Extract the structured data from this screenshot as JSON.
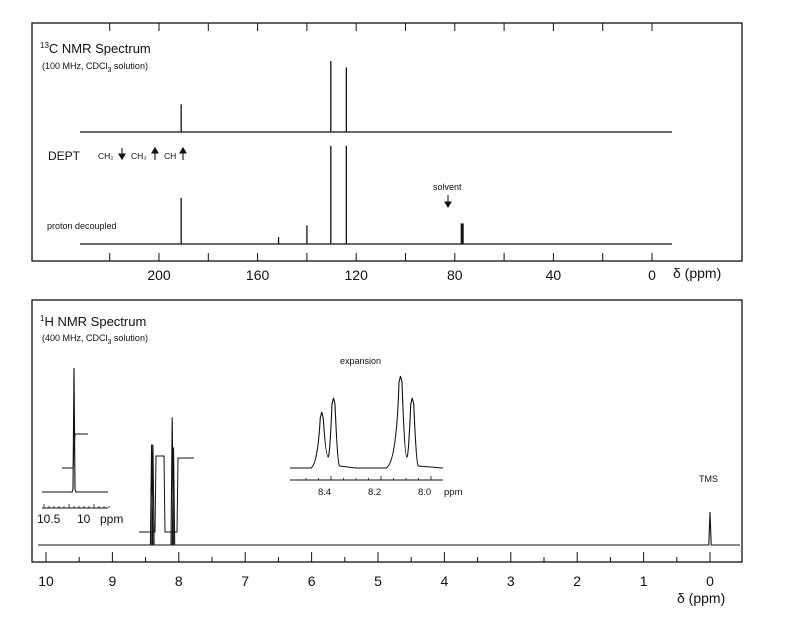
{
  "colors": {
    "ink": "#111111",
    "background": "#ffffff"
  },
  "carbon_panel": {
    "title_sup": "13",
    "title": "C NMR Spectrum",
    "subtitle_pre": "(100 MHz, CDCl",
    "subtitle_sub": "3",
    "subtitle_post": " solution)",
    "dept_label": "DEPT",
    "dept_ch2": "CH₂",
    "dept_ch3": "CH₃",
    "dept_ch": "CH",
    "proton_decoupled_label": "proton decoupled",
    "solvent_label": "solvent",
    "axis_label": "δ (ppm)"
  },
  "proton_panel": {
    "title_sup": "1",
    "title": "H NMR Spectrum",
    "subtitle_pre": "(400 MHz, CDCl",
    "subtitle_sub": "3",
    "subtitle_post": " solution)",
    "expansion_label": "expansion",
    "tms_label": "TMS",
    "inset_left_ticks": [
      "10.5",
      "10"
    ],
    "inset_left_unit": "ppm",
    "inset_right_ticks": [
      "8.4",
      "8.2",
      "8.0"
    ],
    "inset_right_unit": "ppm",
    "axis_label": "δ (ppm)"
  },
  "chart_data": [
    {
      "type": "line",
      "title": "13C NMR Spectrum (100 MHz, CDCl3 solution)",
      "xlabel": "δ (ppm)",
      "xlim": [
        220,
        -10
      ],
      "x_ticks": [
        "200",
        "160",
        "120",
        "80",
        "40",
        "0"
      ],
      "series": [
        {
          "name": "DEPT",
          "peaks_ppm": [
            191.0,
            130.3,
            124.0
          ],
          "relative_heights": [
            0.39,
            1.0,
            0.91
          ]
        },
        {
          "name": "proton decoupled",
          "peaks_ppm": [
            191.0,
            151.5,
            140.0,
            130.3,
            124.0,
            77.0
          ],
          "relative_heights": [
            0.47,
            0.07,
            0.19,
            1.0,
            1.0,
            0.21
          ]
        }
      ],
      "annotations": [
        "solvent"
      ]
    },
    {
      "type": "line",
      "title": "1H NMR Spectrum (400 MHz, CDCl3 solution)",
      "xlabel": "δ (ppm)",
      "xlim": [
        10.5,
        -0.3
      ],
      "x_ticks": [
        "10",
        "9",
        "8",
        "7",
        "6",
        "5",
        "4",
        "3",
        "2",
        "1",
        "0"
      ],
      "series": [
        {
          "name": "spectrum",
          "peaks_ppm": [
            10.14,
            8.41,
            8.39,
            8.1,
            8.08,
            0.0
          ],
          "relative_heights": [
            1.0,
            0.67,
            0.67,
            0.85,
            0.65,
            0.22
          ]
        }
      ],
      "annotations": [
        "expansion",
        "TMS"
      ]
    }
  ]
}
